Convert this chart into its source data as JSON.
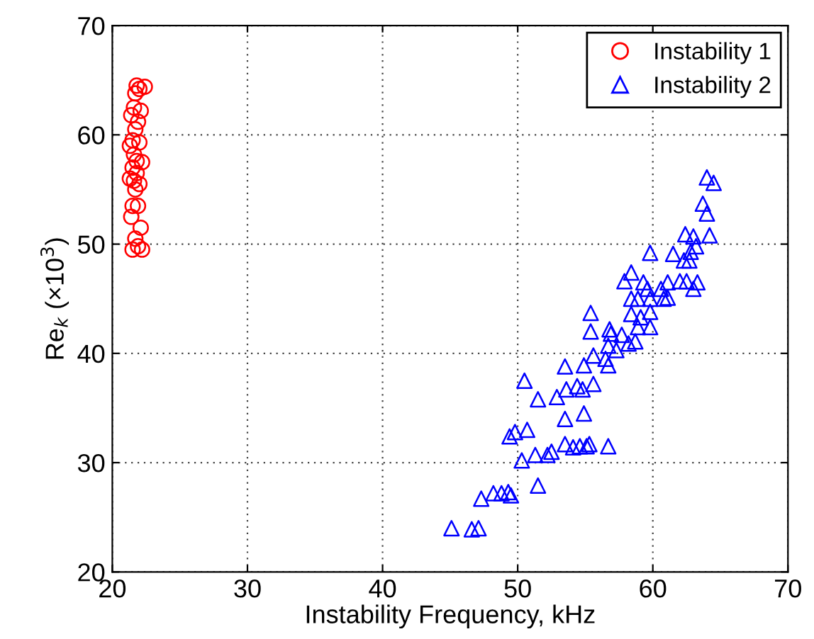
{
  "chart_data": {
    "type": "scatter",
    "xlabel": "Instability Frequency, kHz",
    "ylabel": "Re$_{k}$ (×10$^{3}$)",
    "xlim": [
      20,
      70
    ],
    "ylim": [
      20,
      70
    ],
    "xticks": [
      20,
      30,
      40,
      50,
      60,
      70
    ],
    "yticks": [
      20,
      30,
      40,
      50,
      60,
      70
    ],
    "grid": true,
    "legend": "top right",
    "series": [
      {
        "name": "Instability 1",
        "color": "#ff0000",
        "marker": "circle",
        "x": [
          21.8,
          22.0,
          21.7,
          22.4,
          21.6,
          22.1,
          21.4,
          21.9,
          21.7,
          21.5,
          22.0,
          21.3,
          21.6,
          22.2,
          21.5,
          21.8,
          21.3,
          21.6,
          22.0,
          21.7,
          21.5,
          21.9,
          21.4,
          22.1,
          21.7,
          21.9,
          21.5,
          22.2,
          21.8
        ],
        "values": [
          64.5,
          64.2,
          63.8,
          64.4,
          62.5,
          62.2,
          61.8,
          61.2,
          60.5,
          59.5,
          59.3,
          59.0,
          58.2,
          57.5,
          57.0,
          56.5,
          56.0,
          55.8,
          55.5,
          55.0,
          53.5,
          53.5,
          52.5,
          51.5,
          50.5,
          49.8,
          49.5,
          49.5,
          57.6
        ]
      },
      {
        "name": "Instability 2",
        "color": "#0000ff",
        "marker": "triangle",
        "x": [
          64.0,
          64.5,
          63.7,
          64.0,
          64.2,
          62.4,
          63.0,
          63.2,
          62.8,
          62.3,
          62.7,
          61.5,
          59.8,
          58.4,
          57.9,
          59.3,
          59.6,
          60.6,
          61.1,
          62.0,
          62.5,
          63.3,
          63.0,
          58.4,
          58.9,
          59.8,
          61.1,
          60.8,
          58.4,
          59.8,
          59.1,
          55.4,
          55.4,
          56.8,
          56.9,
          57.7,
          58.9,
          59.8,
          58.2,
          58.7,
          57.3,
          56.7,
          55.6,
          56.5,
          56.7,
          54.9,
          53.5,
          50.5,
          51.5,
          52.9,
          53.6,
          54.4,
          54.8,
          55.6,
          53.5,
          54.9,
          49.8,
          49.4,
          50.7,
          50.3,
          51.3,
          52.2,
          52.5,
          53.5,
          54.1,
          54.6,
          55.1,
          55.3,
          56.7,
          51.5,
          47.3,
          48.2,
          48.8,
          49.3,
          49.5,
          45.1,
          46.6,
          47.1
        ],
        "values": [
          56.1,
          55.6,
          53.7,
          52.8,
          50.8,
          50.9,
          50.7,
          49.8,
          49.3,
          48.5,
          48.5,
          49.1,
          49.2,
          47.4,
          46.6,
          46.5,
          45.9,
          45.9,
          46.5,
          46.6,
          46.6,
          46.5,
          45.9,
          45.0,
          45.0,
          45.0,
          45.1,
          45.0,
          43.6,
          43.8,
          43.3,
          43.7,
          42.0,
          42.2,
          41.8,
          41.7,
          42.4,
          42.4,
          40.9,
          41.1,
          40.3,
          40.7,
          39.8,
          39.5,
          38.9,
          38.9,
          38.8,
          37.5,
          35.8,
          36.0,
          36.7,
          37.0,
          36.7,
          37.2,
          34.0,
          34.5,
          32.8,
          32.4,
          33.0,
          30.2,
          30.7,
          30.7,
          31.0,
          31.7,
          31.4,
          31.5,
          31.5,
          31.7,
          31.5,
          27.9,
          26.7,
          27.2,
          27.2,
          27.3,
          27.0,
          24.0,
          23.9,
          24.0
        ]
      }
    ]
  }
}
